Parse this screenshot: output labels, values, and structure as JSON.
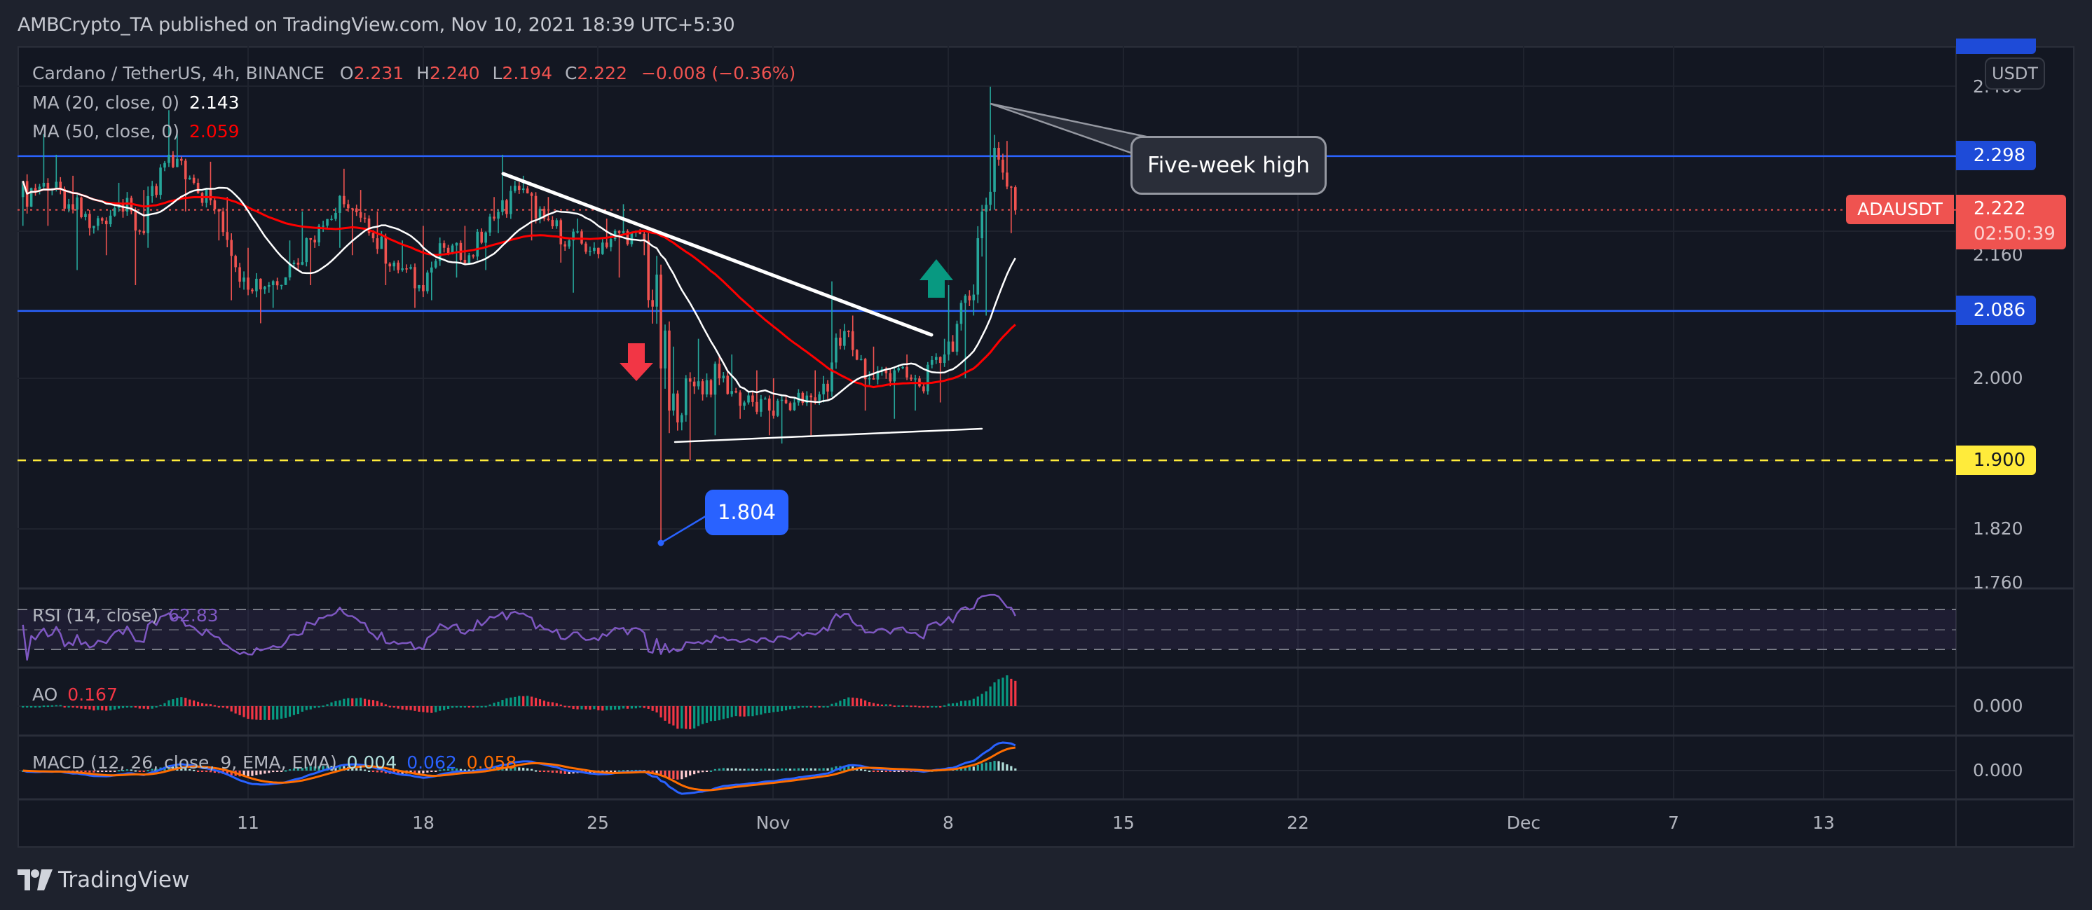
{
  "header": {
    "published": "AMBCrypto_TA published on TradingView.com, Nov 10, 2021 18:39 UTC+5:30"
  },
  "legend": {
    "symbol": "Cardano / TetherUS, 4h, BINANCE",
    "o_label": "O",
    "o": "2.231",
    "h_label": "H",
    "h": "2.240",
    "l_label": "L",
    "l": "2.194",
    "c_label": "C",
    "c": "2.222",
    "change": "−0.008 (−0.36%)",
    "ma20_label": "MA (20, close, 0)",
    "ma20_value": "2.143",
    "ma50_label": "MA (50, close, 0)",
    "ma50_value": "2.059"
  },
  "indicators": {
    "rsi_label": "RSI (14, close)",
    "rsi_value": "62.83",
    "ao_label": "AO",
    "ao_value": "0.167",
    "macd_label": "MACD (12, 26, close, 9, EMA, EMA)",
    "macd_hist": "0.004",
    "macd_line": "0.062",
    "macd_signal": "0.058",
    "ao_axis": "0.000",
    "macd_axis": "0.000"
  },
  "price_axis": {
    "currency": "USDT",
    "ticks": [
      {
        "label": "2.400",
        "price": 2.4
      },
      {
        "label": "2.160",
        "price": 2.16
      },
      {
        "label": "2.000",
        "price": 2.0
      },
      {
        "label": "1.820",
        "price": 1.82
      },
      {
        "label": "1.760",
        "price": 1.76
      }
    ],
    "symbol_tag": "ADAUSDT",
    "last_price": "2.222",
    "countdown": "02:50:39",
    "resistance_label": "2.298",
    "support_label": "2.086",
    "key_level_label": "1.900"
  },
  "annotations": {
    "callout": "Five-week high",
    "low_label": "1.804"
  },
  "time_axis": [
    {
      "label": "11",
      "x": 354
    },
    {
      "label": "18",
      "x": 604
    },
    {
      "label": "25",
      "x": 853
    },
    {
      "label": "Nov",
      "x": 1103
    },
    {
      "label": "8",
      "x": 1353
    },
    {
      "label": "15",
      "x": 1603
    },
    {
      "label": "22",
      "x": 1852
    },
    {
      "label": "Dec",
      "x": 2174
    },
    {
      "label": "7",
      "x": 2388
    },
    {
      "label": "13",
      "x": 2602
    }
  ],
  "brand": {
    "logo_text": "TradingView"
  },
  "colors": {
    "up": "#26a69a",
    "down": "#ef5350",
    "ma20": "#ffffff",
    "ma50": "#ff0000",
    "resistance": "#2962ff",
    "key_level": "#ffeb3b",
    "rsi": "#7e57c2",
    "macd_line": "#2962ff",
    "macd_signal": "#ff6d00",
    "ao_up": "#089981",
    "ao_down": "#f23645"
  },
  "chart_data": {
    "type": "candlestick",
    "title": "Cardano / TetherUS, 4h, BINANCE",
    "scale": "log",
    "ylim": [
      1.74,
      2.43
    ],
    "horizontal_levels": [
      {
        "price": 2.298,
        "style": "solid",
        "color": "#2962ff"
      },
      {
        "price": 2.086,
        "style": "solid",
        "color": "#2962ff"
      },
      {
        "price": 1.9,
        "style": "dashed",
        "color": "#ffeb3b"
      },
      {
        "price": 2.222,
        "style": "dotted",
        "color": "#ef5350"
      }
    ],
    "trendlines": [
      {
        "name": "descending-resistance",
        "from": [
          718,
          248
        ],
        "to": [
          1329,
          478
        ]
      },
      {
        "name": "ascending-support",
        "from": [
          963,
          631
        ],
        "to": [
          1401,
          612
        ]
      }
    ],
    "arrows": [
      {
        "name": "bearish-arrow",
        "direction": "down",
        "color": "#f23645",
        "x": 908,
        "y_top": 490,
        "y_tip": 544
      },
      {
        "name": "bullish-arrow",
        "direction": "up",
        "color": "#089981",
        "x": 1336,
        "y_tip": 370,
        "y_bottom": 425
      }
    ],
    "day_x_origin": 354,
    "day_width": 35.7,
    "daily_ohlc_note": "day index relative to Oct 11 (0); each day split into six 4h candles",
    "daily": [
      {
        "d": -9,
        "o": 2.24,
        "h": 2.33,
        "l": 2.2,
        "c": 2.26
      },
      {
        "d": -8,
        "o": 2.26,
        "h": 2.3,
        "l": 2.2,
        "c": 2.23
      },
      {
        "d": -7,
        "o": 2.23,
        "h": 2.27,
        "l": 2.14,
        "c": 2.2
      },
      {
        "d": -6,
        "o": 2.2,
        "h": 2.26,
        "l": 2.16,
        "c": 2.23
      },
      {
        "d": -5,
        "o": 2.23,
        "h": 2.25,
        "l": 2.12,
        "c": 2.19
      },
      {
        "d": -4,
        "o": 2.19,
        "h": 2.365,
        "l": 2.17,
        "c": 2.3
      },
      {
        "d": -3,
        "o": 2.3,
        "h": 2.33,
        "l": 2.22,
        "c": 2.26
      },
      {
        "d": -2,
        "o": 2.26,
        "h": 2.29,
        "l": 2.18,
        "c": 2.22
      },
      {
        "d": -1,
        "o": 2.22,
        "h": 2.24,
        "l": 2.1,
        "c": 2.13
      },
      {
        "d": 0,
        "o": 2.13,
        "h": 2.17,
        "l": 2.07,
        "c": 2.12
      },
      {
        "d": 1,
        "o": 2.12,
        "h": 2.18,
        "l": 2.09,
        "c": 2.15
      },
      {
        "d": 2,
        "o": 2.15,
        "h": 2.22,
        "l": 2.12,
        "c": 2.2
      },
      {
        "d": 3,
        "o": 2.2,
        "h": 2.28,
        "l": 2.17,
        "c": 2.23
      },
      {
        "d": 4,
        "o": 2.23,
        "h": 2.25,
        "l": 2.16,
        "c": 2.19
      },
      {
        "d": 5,
        "o": 2.19,
        "h": 2.22,
        "l": 2.12,
        "c": 2.15
      },
      {
        "d": 6,
        "o": 2.15,
        "h": 2.18,
        "l": 2.09,
        "c": 2.12
      },
      {
        "d": 7,
        "o": 2.12,
        "h": 2.2,
        "l": 2.1,
        "c": 2.17
      },
      {
        "d": 8,
        "o": 2.17,
        "h": 2.2,
        "l": 2.13,
        "c": 2.16
      },
      {
        "d": 9,
        "o": 2.16,
        "h": 2.24,
        "l": 2.14,
        "c": 2.21
      },
      {
        "d": 10,
        "o": 2.21,
        "h": 2.3,
        "l": 2.19,
        "c": 2.25
      },
      {
        "d": 11,
        "o": 2.25,
        "h": 2.27,
        "l": 2.18,
        "c": 2.21
      },
      {
        "d": 12,
        "o": 2.21,
        "h": 2.24,
        "l": 2.15,
        "c": 2.18
      },
      {
        "d": 13,
        "o": 2.18,
        "h": 2.21,
        "l": 2.11,
        "c": 2.17
      },
      {
        "d": 14,
        "o": 2.17,
        "h": 2.21,
        "l": 2.13,
        "c": 2.19
      },
      {
        "d": 15,
        "o": 2.19,
        "h": 2.23,
        "l": 2.16,
        "c": 2.18
      },
      {
        "d": 16,
        "o": 2.18,
        "h": 2.19,
        "l": 1.804,
        "c": 1.96
      },
      {
        "d": 17,
        "o": 1.96,
        "h": 2.04,
        "l": 1.9,
        "c": 1.99
      },
      {
        "d": 18,
        "o": 1.99,
        "h": 2.05,
        "l": 1.93,
        "c": 2.0
      },
      {
        "d": 19,
        "o": 2.0,
        "h": 2.03,
        "l": 1.95,
        "c": 1.97
      },
      {
        "d": 20,
        "o": 1.97,
        "h": 2.01,
        "l": 1.93,
        "c": 1.96
      },
      {
        "d": 21,
        "o": 1.96,
        "h": 2.0,
        "l": 1.92,
        "c": 1.97
      },
      {
        "d": 22,
        "o": 1.97,
        "h": 2.01,
        "l": 1.93,
        "c": 1.98
      },
      {
        "d": 23,
        "o": 1.98,
        "h": 2.125,
        "l": 1.97,
        "c": 2.06
      },
      {
        "d": 24,
        "o": 2.06,
        "h": 2.08,
        "l": 1.96,
        "c": 2.0
      },
      {
        "d": 25,
        "o": 2.0,
        "h": 2.04,
        "l": 1.95,
        "c": 2.01
      },
      {
        "d": 26,
        "o": 2.01,
        "h": 2.03,
        "l": 1.96,
        "c": 1.99
      },
      {
        "d": 27,
        "o": 1.99,
        "h": 2.05,
        "l": 1.97,
        "c": 2.03
      },
      {
        "d": 28,
        "o": 2.03,
        "h": 2.12,
        "l": 2.0,
        "c": 2.1
      },
      {
        "d": 29,
        "o": 2.1,
        "h": 2.4,
        "l": 2.08,
        "c": 2.31
      },
      {
        "d": 30,
        "o": 2.31,
        "h": 2.32,
        "l": 2.19,
        "c": 2.222,
        "n": 5
      }
    ]
  }
}
